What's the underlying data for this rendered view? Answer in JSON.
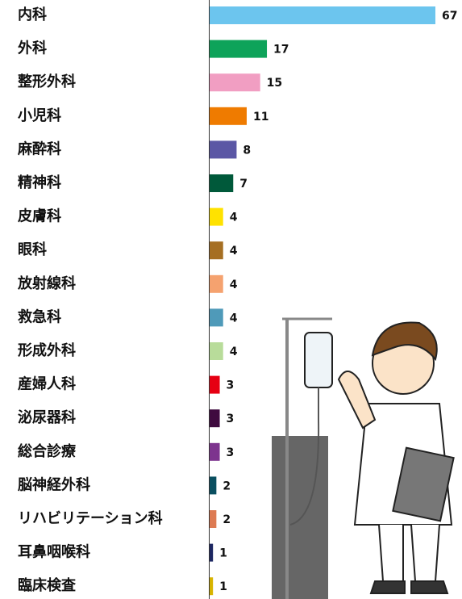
{
  "chart_data": {
    "type": "bar",
    "orientation": "horizontal",
    "categories": [
      "内科",
      "外科",
      "整形外科",
      "小児科",
      "麻酔科",
      "精神科",
      "皮膚科",
      "眼科",
      "放射線科",
      "救急科",
      "形成外科",
      "産婦人科",
      "泌尿器科",
      "総合診療",
      "脳神経外科",
      "リハビリテーション科",
      "耳鼻咽喉科",
      "臨床検査"
    ],
    "values": [
      67,
      17,
      15,
      11,
      8,
      7,
      4,
      4,
      4,
      4,
      4,
      3,
      3,
      3,
      2,
      2,
      1,
      1
    ],
    "colors": [
      "#6cc5ee",
      "#0ea35a",
      "#f19ec2",
      "#ef7b00",
      "#5b57a5",
      "#00593a",
      "#ffe200",
      "#a66f23",
      "#f5a26f",
      "#4f9ab9",
      "#b8dc9a",
      "#e60012",
      "#3f0b3f",
      "#7d348e",
      "#0a4f60",
      "#dd7b53",
      "#1d2762",
      "#d8b400"
    ]
  }
}
